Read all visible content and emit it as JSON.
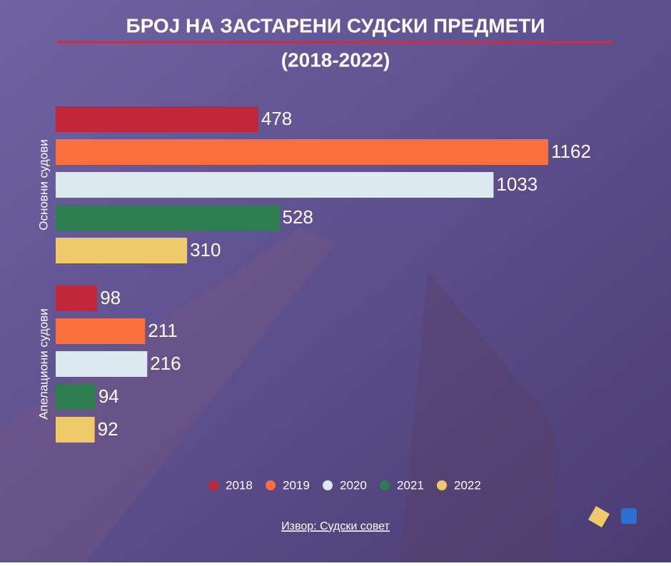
{
  "chart_data": {
    "type": "bar",
    "orientation": "horizontal",
    "title": "БРОЈ НА ЗАСТАРЕНИ СУДСКИ ПРЕДМЕТИ",
    "subtitle": "(2018-2022)",
    "categories": [
      "Основни судови",
      "Апелациони судови"
    ],
    "series": [
      {
        "name": "2018",
        "color": "#c0283a",
        "values": [
          478,
          98
        ]
      },
      {
        "name": "2019",
        "color": "#f9703e",
        "values": [
          1162,
          211
        ]
      },
      {
        "name": "2020",
        "color": "#dce9ee",
        "values": [
          1033,
          216
        ]
      },
      {
        "name": "2021",
        "color": "#2e7d4f",
        "values": [
          528,
          94
        ]
      },
      {
        "name": "2022",
        "color": "#f0c96a",
        "values": [
          310,
          92
        ]
      }
    ],
    "legend": "bottom"
  },
  "source": "Извор: Судски совет"
}
